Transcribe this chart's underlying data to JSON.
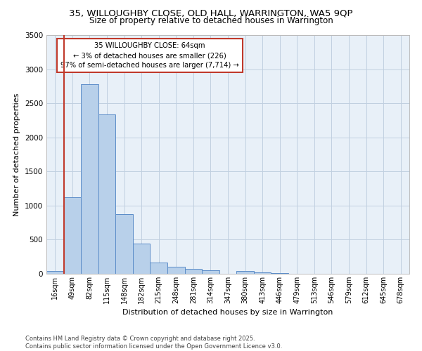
{
  "title_line1": "35, WILLOUGHBY CLOSE, OLD HALL, WARRINGTON, WA5 9QP",
  "title_line2": "Size of property relative to detached houses in Warrington",
  "xlabel": "Distribution of detached houses by size in Warrington",
  "ylabel": "Number of detached properties",
  "bar_labels": [
    "16sqm",
    "49sqm",
    "82sqm",
    "115sqm",
    "148sqm",
    "182sqm",
    "215sqm",
    "248sqm",
    "281sqm",
    "314sqm",
    "347sqm",
    "380sqm",
    "413sqm",
    "446sqm",
    "479sqm",
    "513sqm",
    "546sqm",
    "579sqm",
    "612sqm",
    "645sqm",
    "678sqm"
  ],
  "bar_values": [
    40,
    1120,
    2780,
    2340,
    880,
    440,
    165,
    100,
    75,
    50,
    0,
    40,
    20,
    10,
    0,
    0,
    0,
    0,
    0,
    0,
    0
  ],
  "bar_color": "#b8d0ea",
  "bar_edge_color": "#5b8cc8",
  "marker_color": "#c0392b",
  "annotation_title": "35 WILLOUGHBY CLOSE: 64sqm",
  "annotation_line2": "← 3% of detached houses are smaller (226)",
  "annotation_line3": "97% of semi-detached houses are larger (7,714) →",
  "annotation_box_color": "#c0392b",
  "ylim": [
    0,
    3500
  ],
  "yticks": [
    0,
    500,
    1000,
    1500,
    2000,
    2500,
    3000,
    3500
  ],
  "bg_color": "#e8f0f8",
  "footer1": "Contains HM Land Registry data © Crown copyright and database right 2025.",
  "footer2": "Contains public sector information licensed under the Open Government Licence v3.0."
}
